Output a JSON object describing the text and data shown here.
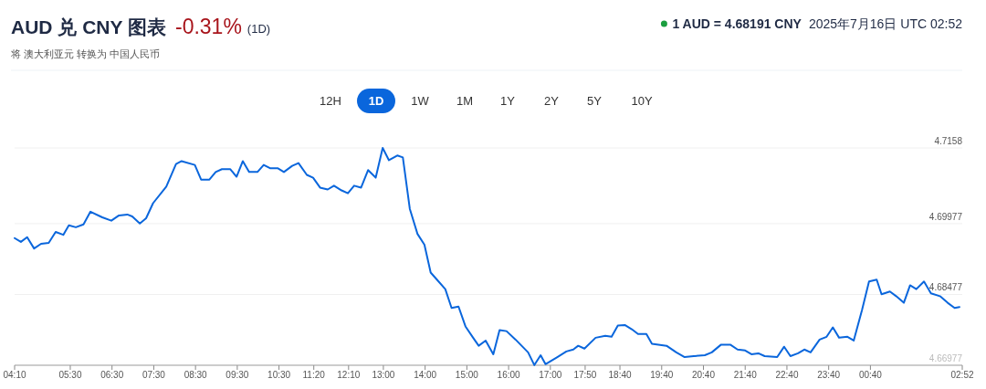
{
  "chart_data": {
    "type": "line",
    "title": "AUD 兑 CNY 图表",
    "subtitle": "将 澳大利亚元 转换为 中国人民币",
    "annotations": [
      "-0.31%",
      "(1D)",
      "1 AUD = 4.68191 CNY",
      "2025年7月16日 UTC 02:52",
      "12H",
      "1D",
      "1W",
      "1M",
      "1Y",
      "2Y",
      "5Y",
      "10Y"
    ],
    "series": [
      {
        "color": "#0a66dc",
        "x": [
          "2025-07-15T04:10",
          "2025-07-15T04:19",
          "2025-07-15T04:28",
          "2025-07-15T04:38",
          "2025-07-15T04:48",
          "2025-07-15T04:59",
          "2025-07-15T05:09",
          "2025-07-15T05:20",
          "2025-07-15T05:28",
          "2025-07-15T05:38",
          "2025-07-15T05:49",
          "2025-07-15T05:59",
          "2025-07-15T06:16",
          "2025-07-15T06:29",
          "2025-07-15T06:40",
          "2025-07-15T06:52",
          "2025-07-15T06:59",
          "2025-07-15T07:10",
          "2025-07-15T07:19",
          "2025-07-15T07:29",
          "2025-07-15T07:48",
          "2025-07-15T08:02",
          "2025-07-15T08:10",
          "2025-07-15T08:29",
          "2025-07-15T08:38",
          "2025-07-15T08:50",
          "2025-07-15T08:59",
          "2025-07-15T09:08",
          "2025-07-15T09:20",
          "2025-07-15T09:29",
          "2025-07-15T09:38",
          "2025-07-15T09:47",
          "2025-07-15T09:59",
          "2025-07-15T10:08",
          "2025-07-15T10:17",
          "2025-07-15T10:28",
          "2025-07-15T10:37",
          "2025-07-15T10:49",
          "2025-07-15T10:58",
          "2025-07-15T11:10",
          "2025-07-15T11:19",
          "2025-07-15T11:29",
          "2025-07-15T11:40",
          "2025-07-15T11:49",
          "2025-07-15T12:00",
          "2025-07-15T12:09",
          "2025-07-15T12:18",
          "2025-07-15T12:28",
          "2025-07-15T12:38",
          "2025-07-15T12:49",
          "2025-07-15T12:59",
          "2025-07-15T13:08",
          "2025-07-15T13:20",
          "2025-07-15T13:28",
          "2025-07-15T13:38",
          "2025-07-15T13:49",
          "2025-07-15T13:59",
          "2025-07-15T14:08",
          "2025-07-15T14:17",
          "2025-07-15T14:29",
          "2025-07-15T14:38",
          "2025-07-15T14:48",
          "2025-07-15T14:58",
          "2025-07-15T15:09",
          "2025-07-15T15:17",
          "2025-07-15T15:27",
          "2025-07-15T15:38",
          "2025-07-15T15:47",
          "2025-07-15T15:57",
          "2025-07-15T16:10",
          "2025-07-15T16:28",
          "2025-07-15T16:37",
          "2025-07-15T16:46",
          "2025-07-15T16:53",
          "2025-07-15T17:10",
          "2025-07-15T17:23",
          "2025-07-15T17:33",
          "2025-07-15T17:40",
          "2025-07-15T17:49",
          "2025-07-15T18:05",
          "2025-07-15T18:19",
          "2025-07-15T18:28",
          "2025-07-15T18:37",
          "2025-07-15T18:47",
          "2025-07-15T18:57",
          "2025-07-15T19:06",
          "2025-07-15T19:18",
          "2025-07-15T19:26",
          "2025-07-15T19:47",
          "2025-07-15T20:01",
          "2025-07-15T20:13",
          "2025-07-15T20:26",
          "2025-07-15T20:42",
          "2025-07-15T20:52",
          "2025-07-15T21:05",
          "2025-07-15T21:19",
          "2025-07-15T21:29",
          "2025-07-15T21:40",
          "2025-07-15T21:49",
          "2025-07-15T21:59",
          "2025-07-15T22:08",
          "2025-07-15T22:26",
          "2025-07-15T22:36",
          "2025-07-15T22:45",
          "2025-07-15T22:56",
          "2025-07-15T23:05",
          "2025-07-15T23:14",
          "2025-07-15T23:27",
          "2025-07-15T23:37",
          "2025-07-15T23:46",
          "2025-07-15T23:55",
          "2025-07-16T00:07",
          "2025-07-16T00:16",
          "2025-07-16T00:28",
          "2025-07-16T00:38",
          "2025-07-16T00:49",
          "2025-07-16T00:56",
          "2025-07-16T01:08",
          "2025-07-16T01:17",
          "2025-07-16T01:28",
          "2025-07-16T01:37",
          "2025-07-16T01:46",
          "2025-07-16T01:57",
          "2025-07-16T02:07",
          "2025-07-16T02:20",
          "2025-07-16T02:31",
          "2025-07-16T02:41",
          "2025-07-16T02:48"
        ],
        "values": [
          4.6967,
          4.6959,
          4.6969,
          4.6945,
          4.6955,
          4.6957,
          4.698,
          4.6974,
          4.6994,
          4.699,
          4.6996,
          4.7023,
          4.7011,
          4.7004,
          4.7015,
          4.7017,
          4.7013,
          4.6998,
          4.7009,
          4.7041,
          4.7076,
          4.7124,
          4.713,
          4.7122,
          4.7091,
          4.7091,
          4.7107,
          4.7113,
          4.7113,
          4.7097,
          4.713,
          4.7107,
          4.7107,
          4.7122,
          4.7115,
          4.7115,
          4.7107,
          4.712,
          4.7126,
          4.7101,
          4.7095,
          4.7074,
          4.707,
          4.7078,
          4.7068,
          4.7062,
          4.7078,
          4.7074,
          4.7111,
          4.7095,
          4.7158,
          4.7132,
          4.7142,
          4.7138,
          4.7029,
          4.6976,
          4.6953,
          4.6894,
          4.6879,
          4.6859,
          4.6819,
          4.6822,
          4.678,
          4.6756,
          4.6739,
          4.675,
          4.6721,
          4.6772,
          4.677,
          4.6752,
          4.6725,
          4.6698,
          4.6719,
          4.67,
          4.6715,
          4.6727,
          4.6731,
          4.6739,
          4.6733,
          4.6756,
          4.676,
          4.6758,
          4.6782,
          4.6783,
          4.6774,
          4.6764,
          4.6764,
          4.6743,
          4.6739,
          4.6725,
          4.6715,
          4.6717,
          4.6719,
          4.6725,
          4.6741,
          4.6741,
          4.6731,
          4.6729,
          4.6721,
          4.6723,
          4.6717,
          4.6715,
          4.6737,
          4.6717,
          4.6723,
          4.6731,
          4.6725,
          4.6752,
          4.6758,
          4.6778,
          4.6756,
          4.6758,
          4.675,
          4.6815,
          4.6875,
          4.6879,
          4.6848,
          4.6854,
          4.6844,
          4.683,
          4.6867,
          4.6859,
          4.6875,
          4.685,
          4.6844,
          4.683,
          4.6819,
          4.6821
        ]
      }
    ],
    "xlim": [
      "2025-07-15T04:10",
      "2025-07-16T02:52"
    ],
    "xticks": [
      {
        "value": "2025-07-15T04:10",
        "label": "04:10"
      },
      {
        "value": "2025-07-15T05:30",
        "label": "05:30"
      },
      {
        "value": "2025-07-15T06:30",
        "label": "06:30"
      },
      {
        "value": "2025-07-15T07:30",
        "label": "07:30"
      },
      {
        "value": "2025-07-15T08:30",
        "label": "08:30"
      },
      {
        "value": "2025-07-15T09:30",
        "label": "09:30"
      },
      {
        "value": "2025-07-15T10:30",
        "label": "10:30"
      },
      {
        "value": "2025-07-15T11:20",
        "label": "11:20"
      },
      {
        "value": "2025-07-15T12:10",
        "label": "12:10"
      },
      {
        "value": "2025-07-15T13:00",
        "label": "13:00"
      },
      {
        "value": "2025-07-15T14:00",
        "label": "14:00"
      },
      {
        "value": "2025-07-15T15:00",
        "label": "15:00"
      },
      {
        "value": "2025-07-15T16:00",
        "label": "16:00"
      },
      {
        "value": "2025-07-15T17:00",
        "label": "17:00"
      },
      {
        "value": "2025-07-15T17:50",
        "label": "17:50"
      },
      {
        "value": "2025-07-15T18:40",
        "label": "18:40"
      },
      {
        "value": "2025-07-15T19:40",
        "label": "19:40"
      },
      {
        "value": "2025-07-15T20:40",
        "label": "20:40"
      },
      {
        "value": "2025-07-15T21:40",
        "label": "21:40"
      },
      {
        "value": "2025-07-15T22:40",
        "label": "22:40"
      },
      {
        "value": "2025-07-15T23:40",
        "label": "23:40"
      },
      {
        "value": "2025-07-16T00:40",
        "label": "00:40"
      },
      {
        "value": "2025-07-16T02:52",
        "label": "02:52"
      }
    ],
    "ylim": [
      4.66977,
      4.7158
    ],
    "yticks": [
      4.66977,
      4.68477,
      4.69977,
      4.7158
    ],
    "grid": "y",
    "marker": "none",
    "line_style": "solid"
  }
}
